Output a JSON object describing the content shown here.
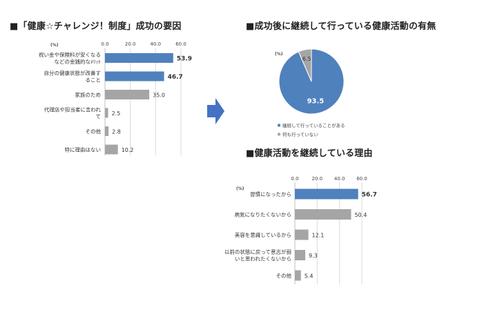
{
  "titles": {
    "left": "■「健康☆チャレンジ！制度」成功の要因",
    "pie": "■成功後に継続して行っている健康活動の有無",
    "reasons": "■健康活動を継続している理由"
  },
  "colors": {
    "accent": "#4f81bd",
    "gray": "#a5a5a5",
    "grid": "#d9d9d9",
    "arrow": "#4472c4"
  },
  "chart_data": [
    {
      "type": "bar",
      "orientation": "horizontal",
      "unit": "(%)",
      "xlim": [
        0,
        60
      ],
      "ticks": [
        "0.0",
        "20.0",
        "40.0",
        "60.0"
      ],
      "categories": [
        [
          "祝い金や保険料が安くなる",
          "などの金銭的なﾒﾘｯﾄ"
        ],
        [
          "自分の健康状態が改善す",
          "ること"
        ],
        [
          "家族のため"
        ],
        [
          "代理店や担当者に言われ",
          "て"
        ],
        [
          "その他"
        ],
        [
          "特に理由はない"
        ]
      ],
      "values": [
        53.9,
        46.7,
        35.0,
        2.5,
        2.8,
        10.2
      ],
      "labels": [
        "53.9",
        "46.7",
        "35.0",
        "2.5",
        "2.8",
        "10.2"
      ],
      "highlight": [
        true,
        true,
        false,
        false,
        false,
        false
      ],
      "grid": true
    },
    {
      "type": "pie",
      "unit": "(%)",
      "categories": [
        "継続して行っていることがある",
        "何も行っていない"
      ],
      "values": [
        93.5,
        6.5
      ],
      "labels": [
        "93.5",
        "6.5"
      ],
      "colors": [
        "#4f81bd",
        "#a5a5a5"
      ],
      "legend": "bottom"
    },
    {
      "type": "bar",
      "orientation": "horizontal",
      "unit": "(%)",
      "xlim": [
        0,
        60
      ],
      "ticks": [
        "0.0",
        "20.0",
        "40.0",
        "60.0"
      ],
      "categories": [
        [
          "習慣になったから"
        ],
        [
          "病気になりたくないから"
        ],
        [
          "美容を意識しているから"
        ],
        [
          "以前の状態に戻って意志が弱",
          "いと思われたくないから"
        ],
        [
          "その他"
        ]
      ],
      "values": [
        56.7,
        50.4,
        12.1,
        9.3,
        5.4
      ],
      "labels": [
        "56.7",
        "50.4",
        "12.1",
        "9.3",
        "5.4"
      ],
      "highlight": [
        true,
        false,
        false,
        false,
        false
      ],
      "grid": true
    }
  ]
}
